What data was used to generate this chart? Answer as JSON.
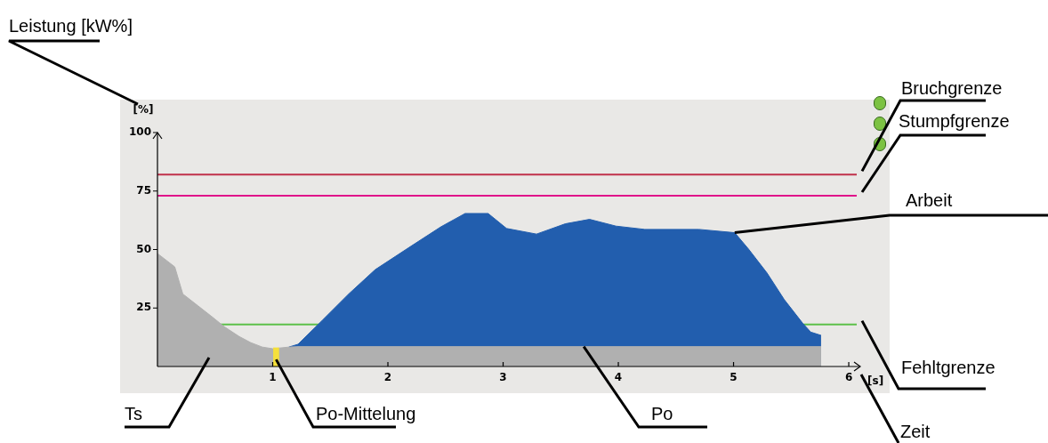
{
  "chart_data": {
    "type": "area",
    "xlabel": "[s]",
    "ylabel": "[%]",
    "xlim": [
      0,
      6.1
    ],
    "xticks": [
      1,
      2,
      3,
      4,
      5,
      6
    ],
    "ylim": [
      0,
      100
    ],
    "yticks": [
      25,
      50,
      75,
      100
    ],
    "grid": false,
    "legend": false,
    "series": [
      {
        "color": "#225eae",
        "x": [
          1.14,
          1.22,
          1.43,
          1.66,
          1.89,
          2.2,
          2.46,
          2.67,
          2.87,
          3.03,
          3.29,
          3.54,
          3.75,
          3.98,
          4.23,
          4.7,
          5.01,
          5.13,
          5.29,
          5.44,
          5.6,
          5.67,
          5.76
        ],
        "values": [
          8.3,
          9.5,
          19.7,
          31,
          41.4,
          51.4,
          59.7,
          65.4,
          65.4,
          59,
          56.6,
          61,
          62.9,
          60,
          58.6,
          58.6,
          57.2,
          50.2,
          40,
          28.6,
          18.5,
          14.7,
          13.3
        ]
      },
      {
        "color": "#b0b0b0",
        "x": [
          0,
          0.15,
          0.22,
          0.35,
          0.48,
          0.58,
          0.71,
          0.81,
          0.91,
          1.0,
          1.14,
          1.22,
          5.76
        ],
        "values": [
          48.3,
          42.6,
          31,
          26,
          21,
          17,
          12.8,
          10.2,
          8.3,
          7.6,
          8.3,
          8.5,
          8.5
        ]
      },
      {
        "type": "bar",
        "color": "#f5e03a",
        "x": [
          1.03
        ],
        "values": [
          8
        ]
      }
    ],
    "ref_lines": [
      {
        "axis": "y",
        "value": 82,
        "label": "Bruchgrenze",
        "color": "#c0304a"
      },
      {
        "axis": "y",
        "value": 73,
        "label": "Stumpfgrenze",
        "color": "#e0108a"
      },
      {
        "axis": "y",
        "value": 18,
        "label": "Fehltgrenze",
        "color": "#5cc04a"
      }
    ],
    "annotations": [
      "Leistung [kW%]",
      {
        "text": "Arbeit",
        "x": 5.01,
        "y": 57.2
      },
      "Zeit",
      "Ts",
      {
        "text": "Po-Mittelung",
        "x": 1.03,
        "y": 3
      },
      {
        "text": "Po",
        "x": 3.7,
        "y": 8.5
      }
    ]
  }
}
